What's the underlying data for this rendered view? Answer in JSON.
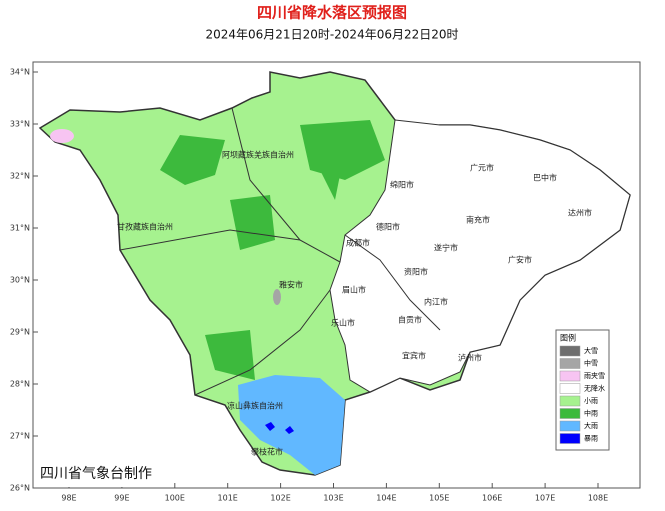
{
  "title": "四川省降水落区预报图",
  "subtitle": "2024年06月21日20时-2024年06月22日20时",
  "lat_labels": [
    "34°N",
    "33°N",
    "32°N",
    "31°N",
    "30°N",
    "29°N",
    "28°N",
    "27°N",
    "26°N"
  ],
  "lon_labels": [
    "98E",
    "99E",
    "100E",
    "101E",
    "102E",
    "103E",
    "104E",
    "105E",
    "106E",
    "107E",
    "108E"
  ],
  "legend": {
    "title": "图例",
    "items": [
      {
        "label": "大雪",
        "color": "#6e6e6e"
      },
      {
        "label": "中雪",
        "color": "#a5a5a5"
      },
      {
        "label": "雨夹雪",
        "color": "#f7c4f2"
      },
      {
        "label": "无降水",
        "color": "#ffffff"
      },
      {
        "label": "小雨",
        "color": "#a6f28f"
      },
      {
        "label": "中雨",
        "color": "#3dba3d"
      },
      {
        "label": "大雨",
        "color": "#61b8ff"
      },
      {
        "label": "暴雨",
        "color": "#0000fe"
      }
    ]
  },
  "regions": [
    "阿坝藏族羌族自治州",
    "甘孜藏族自治州",
    "凉山彝族自治州",
    "雅安市",
    "成都市",
    "德阳市",
    "绵阳市",
    "广元市",
    "巴中市",
    "达州市",
    "南充市",
    "遂宁市",
    "资阳市",
    "眉山市",
    "乐山市",
    "内江市",
    "自贡市",
    "宜宾市",
    "泸州市",
    "攀枝花市",
    "广安市"
  ],
  "credit": "四川省气象台制作"
}
